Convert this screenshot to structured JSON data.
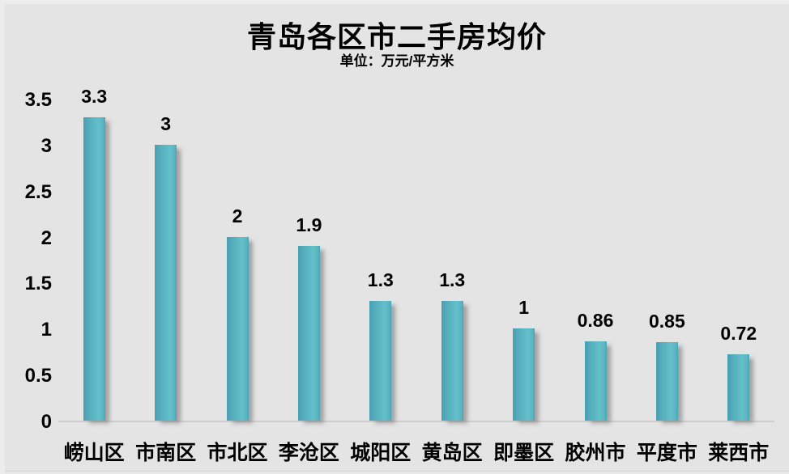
{
  "header": {
    "title": "青岛各区市二手房均价",
    "subtitle": "单位：万元/平方米"
  },
  "chart_data": {
    "type": "bar",
    "title": "青岛各区市二手房均价",
    "subtitle": "单位：万元/平方米",
    "categories": [
      "崂山区",
      "市南区",
      "市北区",
      "李沧区",
      "城阳区",
      "黄岛区",
      "即墨区",
      "胶州市",
      "平度市",
      "莱西市"
    ],
    "values": [
      3.3,
      3,
      2,
      1.9,
      1.3,
      1.3,
      1,
      0.86,
      0.85,
      0.72
    ],
    "value_labels": [
      "3.3",
      "3",
      "2",
      "1.9",
      "1.3",
      "1.3",
      "1",
      "0.86",
      "0.85",
      "0.72"
    ],
    "xlabel": "",
    "ylabel": "",
    "ylim": [
      0,
      3.5
    ],
    "ytick_step": 0.5,
    "ytick_labels": [
      "0",
      "0.5",
      "1",
      "1.5",
      "2",
      "2.5",
      "3",
      "3.5"
    ],
    "grid": false,
    "legend_position": "none",
    "colors": {
      "background": "#e4e4e4",
      "bar_main": "#5cb8c4",
      "bar_gradient_left": "#4a9fb3",
      "bar_gradient_right": "#4ba3b6",
      "bar_shadow": "#696969",
      "axis_line": "#cdcdcd",
      "text": "#000000"
    }
  }
}
